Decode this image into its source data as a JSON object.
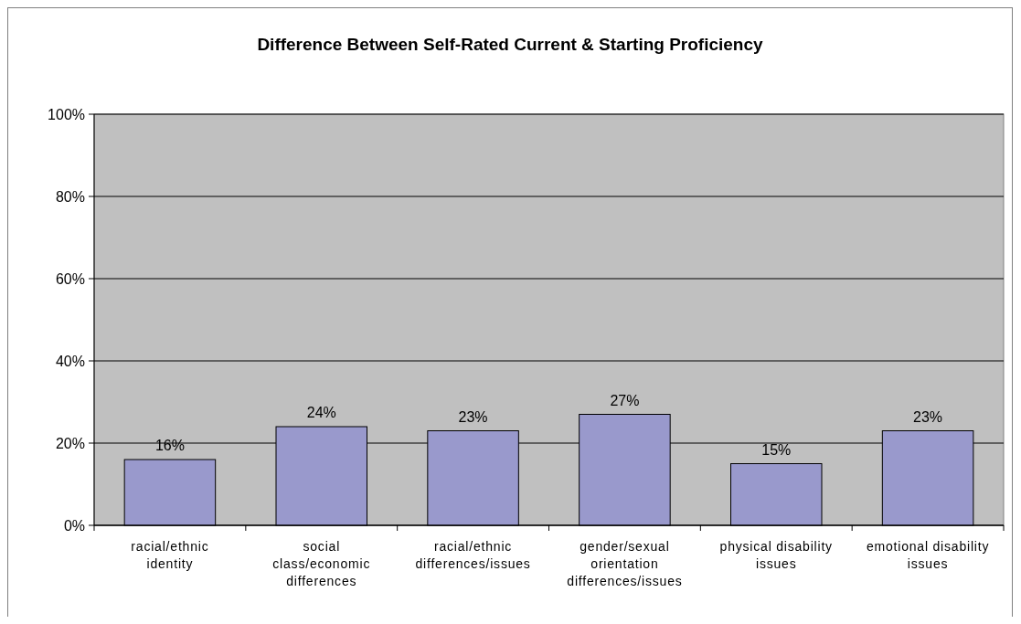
{
  "chart_data": {
    "type": "bar",
    "title": "Difference Between Self-Rated Current & Starting Proficiency",
    "categories": [
      "racial/ethnic identity",
      "social class/economic differences",
      "racial/ethnic differences/issues",
      "gender/sexual orientation differences/issues",
      "physical disability issues",
      "emotional disability issues"
    ],
    "values": [
      16,
      24,
      23,
      27,
      15,
      23
    ],
    "value_labels": [
      "16%",
      "24%",
      "23%",
      "27%",
      "15%",
      "23%"
    ],
    "color": "#9999cc",
    "ylim": [
      0,
      100
    ],
    "yticks": [
      {
        "value": 0,
        "label": "0%"
      },
      {
        "value": 20,
        "label": "20%"
      },
      {
        "value": 40,
        "label": "40%"
      },
      {
        "value": 60,
        "label": "60%"
      },
      {
        "value": 80,
        "label": "80%"
      },
      {
        "value": 100,
        "label": "100%"
      }
    ],
    "grid": "y"
  }
}
